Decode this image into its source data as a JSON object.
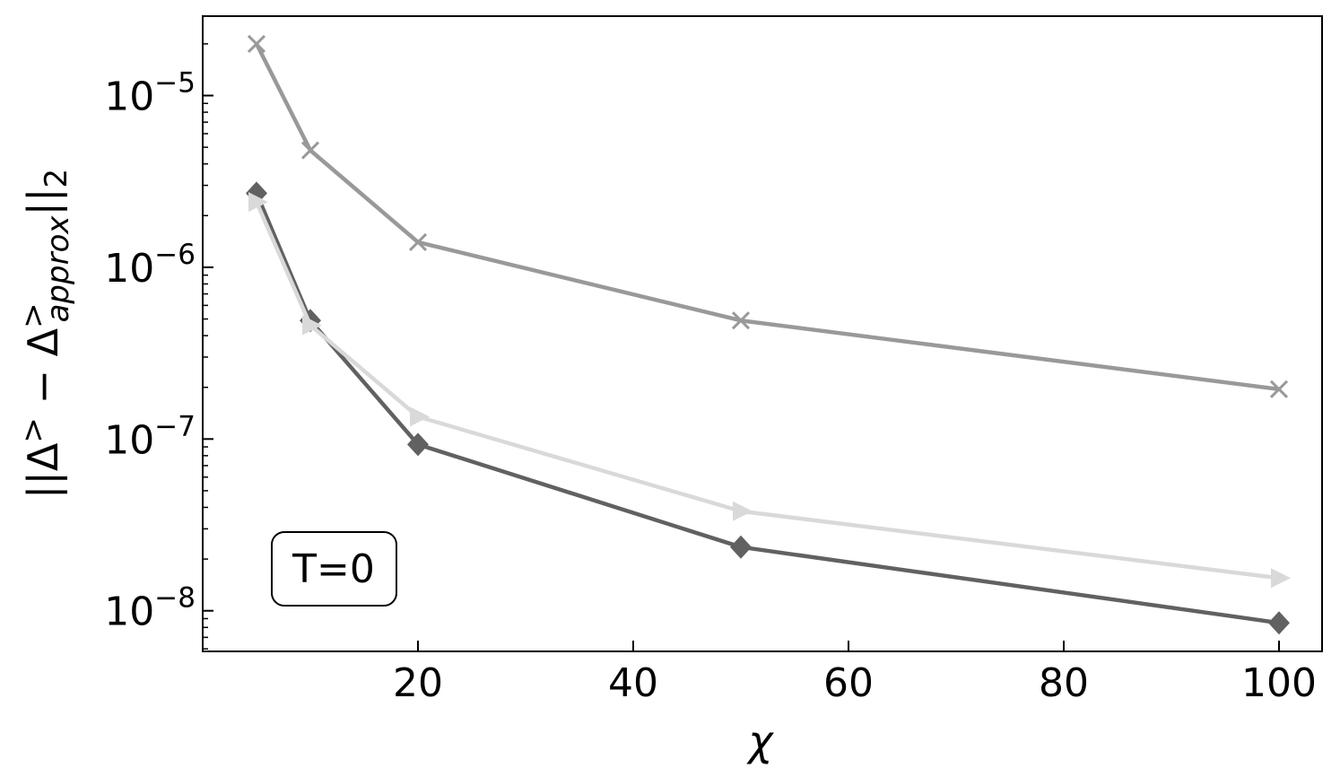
{
  "chart_data": {
    "type": "line",
    "xlabel": "χ",
    "ylabel": {
      "prefix": "||Δ",
      "sup1": ">",
      "mid": " − Δ",
      "sup2": ">",
      "sub2": "approx",
      "suffix": "||",
      "sub_end": "2"
    },
    "xscale": "linear",
    "yscale": "log",
    "xlim": [
      0,
      104
    ],
    "ylim": [
      5.8e-09,
      2.9e-05
    ],
    "xticks": [
      20,
      40,
      60,
      80,
      100
    ],
    "xtick_labels": [
      "20",
      "40",
      "60",
      "80",
      "100"
    ],
    "yticks": [
      1e-08,
      1e-07,
      1e-06,
      1e-05
    ],
    "ytick_labels": [
      {
        "base": "10",
        "exp": "−8"
      },
      {
        "base": "10",
        "exp": "−7"
      },
      {
        "base": "10",
        "exp": "−6"
      },
      {
        "base": "10",
        "exp": "−5"
      }
    ],
    "tick_direction": "in",
    "grid": false,
    "annotation": "T=0",
    "series": [
      {
        "marker": "x",
        "color": "#999999",
        "x": [
          5,
          10,
          20,
          50,
          100
        ],
        "y": [
          2e-05,
          4.8e-06,
          1.4e-06,
          4.9e-07,
          1.95e-07
        ]
      },
      {
        "marker": "diamond",
        "color": "#616161",
        "x": [
          5,
          10,
          20,
          50,
          100
        ],
        "y": [
          2.7e-06,
          4.9e-07,
          9.3e-08,
          2.35e-08,
          8.5e-09
        ]
      },
      {
        "marker": "triangle-right",
        "color": "#d9d9d9",
        "x": [
          5,
          10,
          20,
          50,
          100
        ],
        "y": [
          2.4e-06,
          4.6e-07,
          1.35e-07,
          3.8e-08,
          1.55e-08
        ]
      }
    ]
  }
}
